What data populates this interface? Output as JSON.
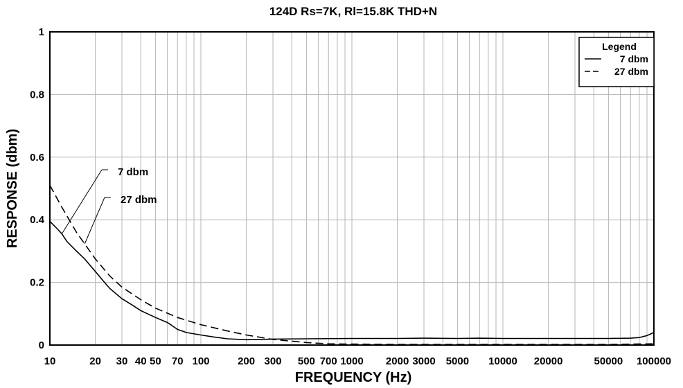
{
  "chart_data": {
    "type": "line",
    "title": "124D Rs=7K, Rl=15.8K  THD+N",
    "xlabel": "FREQUENCY (Hz)",
    "ylabel": "RESPONSE (dbm)",
    "xscale": "log",
    "xlim": [
      10,
      100000
    ],
    "ylim": [
      0,
      1
    ],
    "grid": true,
    "x_ticks": [
      10,
      20,
      30,
      40,
      50,
      70,
      100,
      200,
      300,
      500,
      700,
      1000,
      2000,
      3000,
      5000,
      10000,
      20000,
      50000,
      100000
    ],
    "x_tick_labels": [
      "10",
      "20",
      "30",
      "40",
      "50",
      "70",
      "100",
      "200",
      "300",
      "500",
      "700",
      "1000",
      "2000",
      "3000",
      "5000",
      "10000",
      "20000",
      "50000",
      "100000"
    ],
    "y_ticks": [
      0,
      0.2,
      0.4,
      0.6,
      0.8,
      1
    ],
    "y_tick_labels": [
      "0",
      "0.2",
      "0.4",
      "0.6",
      "0.8",
      "1"
    ],
    "legend": {
      "title": "Legend",
      "position": "top-right",
      "entries": [
        "7 dbm",
        "27 dbm"
      ]
    },
    "series": [
      {
        "name": "7 dbm",
        "style": "solid",
        "x": [
          10,
          11,
          12,
          13,
          15,
          17,
          20,
          23,
          25,
          30,
          35,
          40,
          50,
          60,
          63,
          70,
          80,
          100,
          120,
          150,
          200,
          250,
          300,
          500,
          1000,
          2000,
          3000,
          5000,
          7000,
          10000,
          20000,
          50000,
          70000,
          80000,
          90000,
          100000
        ],
        "values": [
          0.395,
          0.375,
          0.355,
          0.33,
          0.3,
          0.275,
          0.235,
          0.2,
          0.18,
          0.148,
          0.128,
          0.11,
          0.088,
          0.072,
          0.065,
          0.05,
          0.04,
          0.032,
          0.026,
          0.02,
          0.017,
          0.018,
          0.019,
          0.02,
          0.021,
          0.021,
          0.022,
          0.021,
          0.022,
          0.021,
          0.021,
          0.021,
          0.022,
          0.024,
          0.03,
          0.04
        ]
      },
      {
        "name": "27 dbm",
        "style": "dashed",
        "x": [
          10,
          12,
          15,
          20,
          25,
          30,
          40,
          50,
          70,
          100,
          150,
          200,
          300,
          500,
          700,
          1000,
          2000,
          5000,
          10000,
          20000,
          50000,
          100000
        ],
        "values": [
          0.51,
          0.44,
          0.36,
          0.275,
          0.22,
          0.185,
          0.145,
          0.118,
          0.088,
          0.065,
          0.045,
          0.032,
          0.018,
          0.008,
          0.004,
          0.003,
          0.002,
          0.002,
          0.002,
          0.002,
          0.002,
          0.004
        ]
      }
    ],
    "annotations": [
      {
        "text": "7 dbm",
        "series": "7 dbm",
        "points_to_x": 12
      },
      {
        "text": "27 dbm",
        "series": "27 dbm",
        "points_to_x": 17
      }
    ]
  }
}
